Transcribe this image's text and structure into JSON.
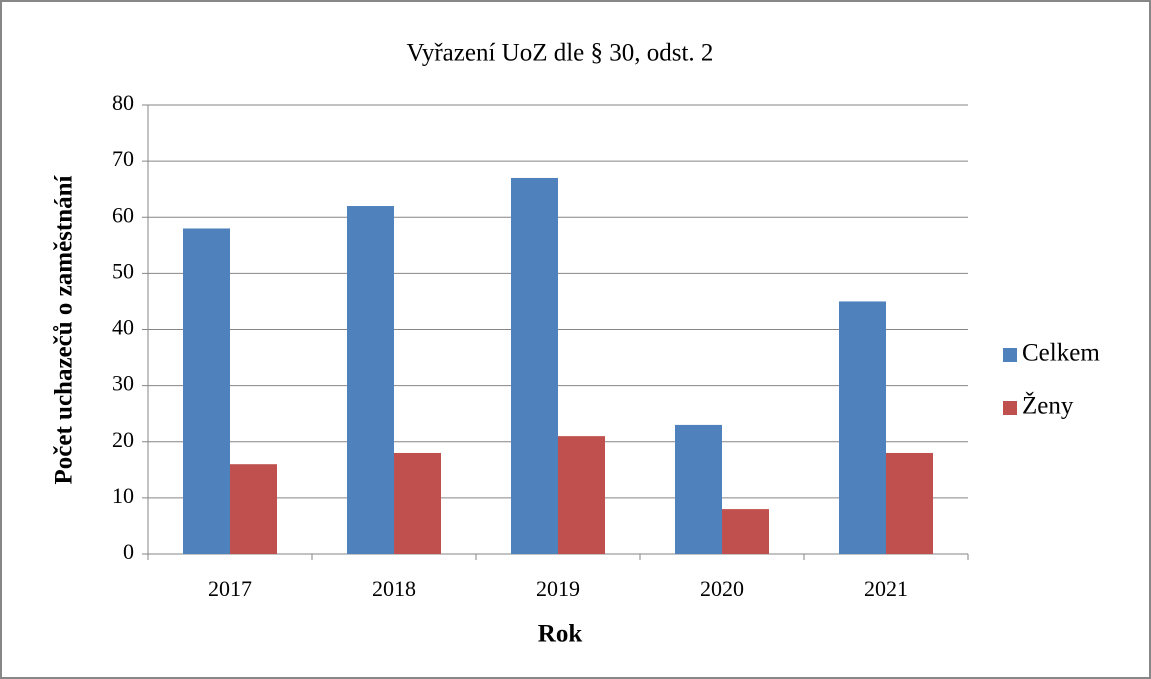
{
  "chart_data": {
    "type": "bar",
    "title": "Vyřazení UoZ dle § 30, odst. 2",
    "x_label": "Rok",
    "y_label": "Počet uchazečů o zaměstnání",
    "categories": [
      "2017",
      "2018",
      "2019",
      "2020",
      "2021"
    ],
    "series": [
      {
        "name": "Celkem",
        "color": "#4f81bd",
        "values": [
          58,
          62,
          67,
          23,
          45
        ]
      },
      {
        "name": "Ženy",
        "color": "#c0504d",
        "values": [
          16,
          18,
          21,
          8,
          18
        ]
      }
    ],
    "ylim": [
      0,
      80
    ],
    "yticks": [
      0,
      10,
      20,
      30,
      40,
      50,
      60,
      70,
      80
    ],
    "grid": true,
    "legend": "right"
  }
}
